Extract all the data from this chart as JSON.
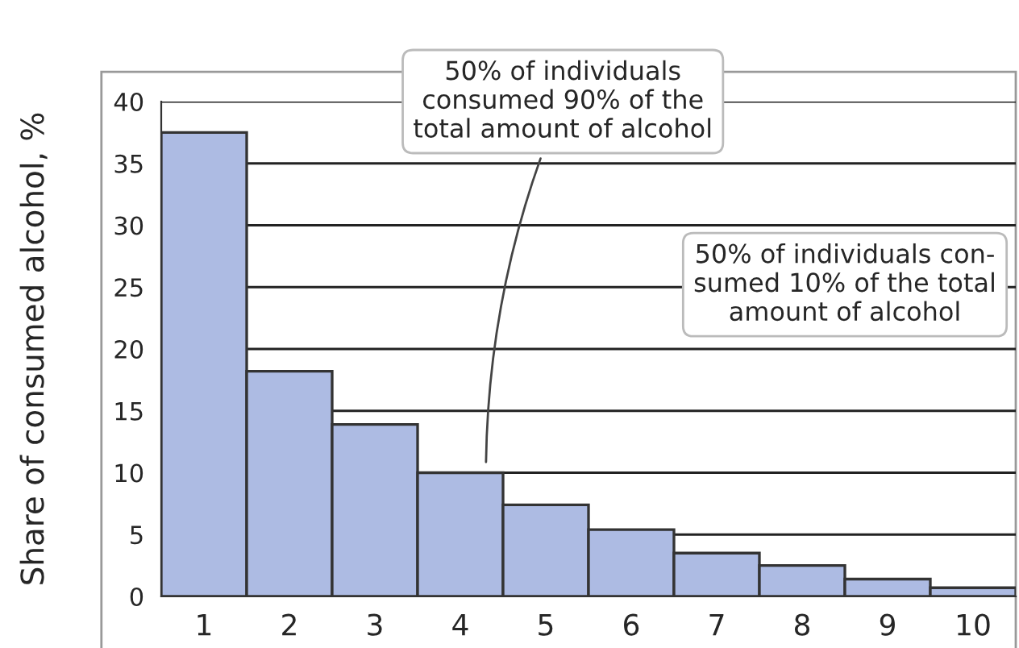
{
  "chart_data": {
    "type": "bar",
    "ylabel": "Share of consumed alcohol, %",
    "categories": [
      "1",
      "2",
      "3",
      "4",
      "5",
      "6",
      "7",
      "8",
      "9",
      "10"
    ],
    "values": [
      37.5,
      18.2,
      13.9,
      10,
      7.4,
      5.4,
      3.5,
      2.5,
      1.4,
      0.7
    ],
    "color": "#adbbe3",
    "ylim": [
      0,
      40
    ],
    "yticks": [
      0,
      5,
      10,
      15,
      20,
      25,
      30,
      35,
      40
    ],
    "grid": "y",
    "annotations": [
      "50% of individuals\nconsumed 90% of the\ntotal amount of alcohol",
      "50% of individuals con-\nsumed 10% of the total\namount of alcohol"
    ]
  }
}
